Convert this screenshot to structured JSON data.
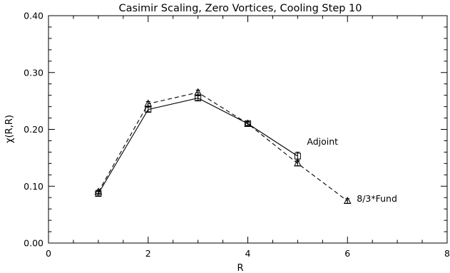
{
  "chart_data": {
    "type": "line",
    "title": "Casimir Scaling, Zero Vortices, Cooling Step 10",
    "xlabel": "R",
    "ylabel": "χ(R,R)",
    "xlim": [
      0,
      8
    ],
    "ylim": [
      0.0,
      0.4
    ],
    "x_ticks": [
      "0",
      "2",
      "4",
      "6",
      "8"
    ],
    "y_ticks": [
      "0.00",
      "0.10",
      "0.20",
      "0.30",
      "0.40"
    ],
    "grid": false,
    "legend": "inline labels at series ends",
    "series": [
      {
        "name": "Adjoint",
        "marker": "square",
        "line_style": "solid",
        "x": [
          1,
          2,
          3,
          4,
          5
        ],
        "values": [
          0.087,
          0.235,
          0.255,
          0.21,
          0.153
        ],
        "errors": [
          0.004,
          0.004,
          0.004,
          0.004,
          0.007
        ]
      },
      {
        "name": "8/3*Fund",
        "marker": "triangle",
        "line_style": "dashed",
        "x": [
          1,
          2,
          3,
          4,
          5,
          6
        ],
        "values": [
          0.09,
          0.245,
          0.265,
          0.21,
          0.14,
          0.074
        ],
        "errors": [
          0.003,
          0.004,
          0.004,
          0.003,
          0.004,
          0.004
        ]
      }
    ]
  }
}
